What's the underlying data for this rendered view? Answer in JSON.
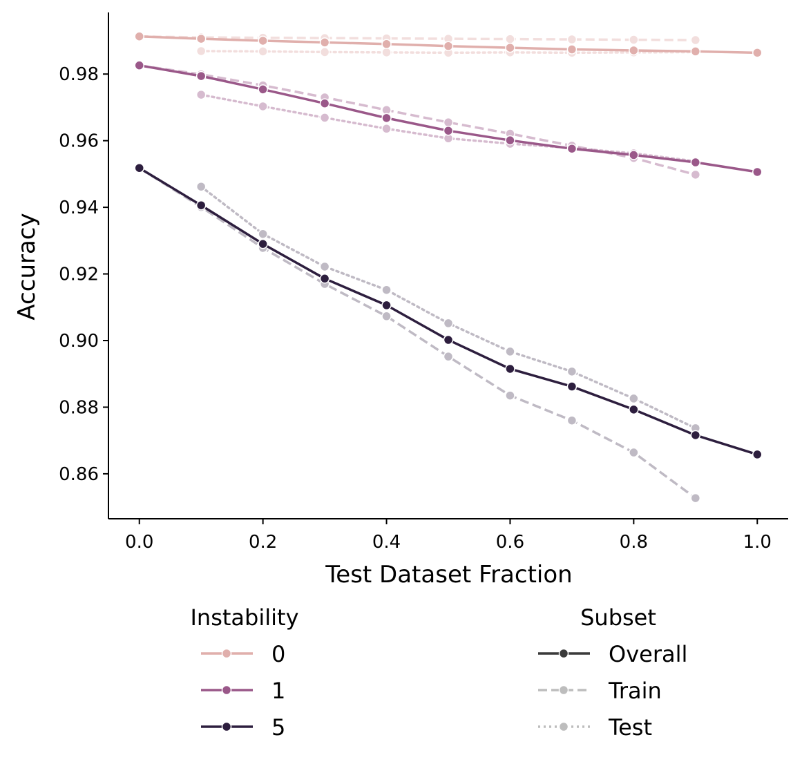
{
  "chart_data": {
    "type": "line",
    "xlabel": "Test Dataset Fraction",
    "ylabel": "Accuracy",
    "xlim": [
      -0.05,
      1.05
    ],
    "ylim": [
      0.8465,
      0.9985
    ],
    "xticks": [
      0.0,
      0.2,
      0.4,
      0.6,
      0.8,
      1.0
    ],
    "xtick_labels": [
      "0.0",
      "0.2",
      "0.4",
      "0.6",
      "0.8",
      "1.0"
    ],
    "yticks": [
      0.86,
      0.88,
      0.9,
      0.92,
      0.94,
      0.96,
      0.98
    ],
    "ytick_labels": [
      "0.86",
      "0.88",
      "0.90",
      "0.92",
      "0.94",
      "0.96",
      "0.98"
    ],
    "grid": false,
    "legend": {
      "placement": "bottom",
      "hue_title": "Instability",
      "hue_entries": [
        {
          "label": "0",
          "color": "#e0afac"
        },
        {
          "label": "1",
          "color": "#9a5889"
        },
        {
          "label": "5",
          "color": "#2d1e3e"
        }
      ],
      "style_title": "Subset",
      "style_entries": [
        {
          "label": "Overall",
          "color": "#3a3a3a",
          "dash": "solid"
        },
        {
          "label": "Train",
          "color": "#bdbdbd",
          "dash": "dashed"
        },
        {
          "label": "Test",
          "color": "#bdbdbd",
          "dash": "dotted"
        }
      ]
    },
    "series": [
      {
        "name": "Instability 0 - Overall",
        "instability": "0",
        "subset": "Overall",
        "color": "#e0afac",
        "dash": "solid",
        "opacity": 1.0,
        "x": [
          0.0,
          0.1,
          0.2,
          0.3,
          0.4,
          0.5,
          0.6,
          0.7,
          0.8,
          0.9,
          1.0
        ],
        "y": [
          0.9913,
          0.9906,
          0.99,
          0.9895,
          0.989,
          0.9884,
          0.9879,
          0.9874,
          0.9871,
          0.9868,
          0.9864
        ]
      },
      {
        "name": "Instability 0 - Train",
        "instability": "0",
        "subset": "Train",
        "color": "#e0afac",
        "dash": "dashed",
        "opacity": 0.4,
        "x": [
          0.0,
          0.1,
          0.2,
          0.3,
          0.4,
          0.5,
          0.6,
          0.7,
          0.8,
          0.9
        ],
        "y": [
          0.9913,
          0.991,
          0.9909,
          0.9908,
          0.9907,
          0.9906,
          0.9905,
          0.9904,
          0.9903,
          0.9902
        ]
      },
      {
        "name": "Instability 0 - Test",
        "instability": "0",
        "subset": "Test",
        "color": "#e0afac",
        "dash": "dotted",
        "opacity": 0.4,
        "x": [
          0.1,
          0.2,
          0.3,
          0.4,
          0.5,
          0.6,
          0.7,
          0.8,
          0.9
        ],
        "y": [
          0.9869,
          0.9868,
          0.9866,
          0.9865,
          0.9864,
          0.9865,
          0.9864,
          0.9865,
          0.9866
        ]
      },
      {
        "name": "Instability 1 - Overall",
        "instability": "1",
        "subset": "Overall",
        "color": "#9a5889",
        "dash": "solid",
        "opacity": 1.0,
        "x": [
          0.0,
          0.1,
          0.2,
          0.3,
          0.4,
          0.5,
          0.6,
          0.7,
          0.8,
          0.9,
          1.0
        ],
        "y": [
          0.9826,
          0.9794,
          0.9754,
          0.9712,
          0.9668,
          0.963,
          0.9601,
          0.9576,
          0.9557,
          0.9535,
          0.9506
        ]
      },
      {
        "name": "Instability 1 - Train",
        "instability": "1",
        "subset": "Train",
        "color": "#9a5889",
        "dash": "dashed",
        "opacity": 0.4,
        "x": [
          0.0,
          0.1,
          0.2,
          0.3,
          0.4,
          0.5,
          0.6,
          0.7,
          0.8,
          0.9
        ],
        "y": [
          0.9826,
          0.9799,
          0.9766,
          0.973,
          0.9692,
          0.9655,
          0.9621,
          0.9585,
          0.9548,
          0.9498
        ]
      },
      {
        "name": "Instability 1 - Test",
        "instability": "1",
        "subset": "Test",
        "color": "#9a5889",
        "dash": "dotted",
        "opacity": 0.4,
        "x": [
          0.1,
          0.2,
          0.3,
          0.4,
          0.5,
          0.6,
          0.7,
          0.8,
          0.9
        ],
        "y": [
          0.9738,
          0.9703,
          0.9669,
          0.9636,
          0.9607,
          0.9591,
          0.9578,
          0.9562,
          0.9538
        ]
      },
      {
        "name": "Instability 5 - Overall",
        "instability": "5",
        "subset": "Overall",
        "color": "#2d1e3e",
        "dash": "solid",
        "opacity": 1.0,
        "x": [
          0.0,
          0.1,
          0.2,
          0.3,
          0.4,
          0.5,
          0.6,
          0.7,
          0.8,
          0.9,
          1.0
        ],
        "y": [
          0.9518,
          0.9406,
          0.929,
          0.9186,
          0.9106,
          0.9002,
          0.8915,
          0.8862,
          0.8793,
          0.8716,
          0.8658
        ]
      },
      {
        "name": "Instability 5 - Train",
        "instability": "5",
        "subset": "Train",
        "color": "#2d1e3e",
        "dash": "dashed",
        "opacity": 0.3,
        "x": [
          0.0,
          0.1,
          0.2,
          0.3,
          0.4,
          0.5,
          0.6,
          0.7,
          0.8,
          0.9
        ],
        "y": [
          0.9518,
          0.9401,
          0.9278,
          0.917,
          0.9073,
          0.8952,
          0.8835,
          0.876,
          0.8664,
          0.8527
        ]
      },
      {
        "name": "Instability 5 - Test",
        "instability": "5",
        "subset": "Test",
        "color": "#2d1e3e",
        "dash": "dotted",
        "opacity": 0.3,
        "x": [
          0.1,
          0.2,
          0.3,
          0.4,
          0.5,
          0.6,
          0.7,
          0.8,
          0.9
        ],
        "y": [
          0.9462,
          0.932,
          0.9222,
          0.9152,
          0.9052,
          0.8967,
          0.8907,
          0.8826,
          0.8737
        ]
      }
    ]
  }
}
